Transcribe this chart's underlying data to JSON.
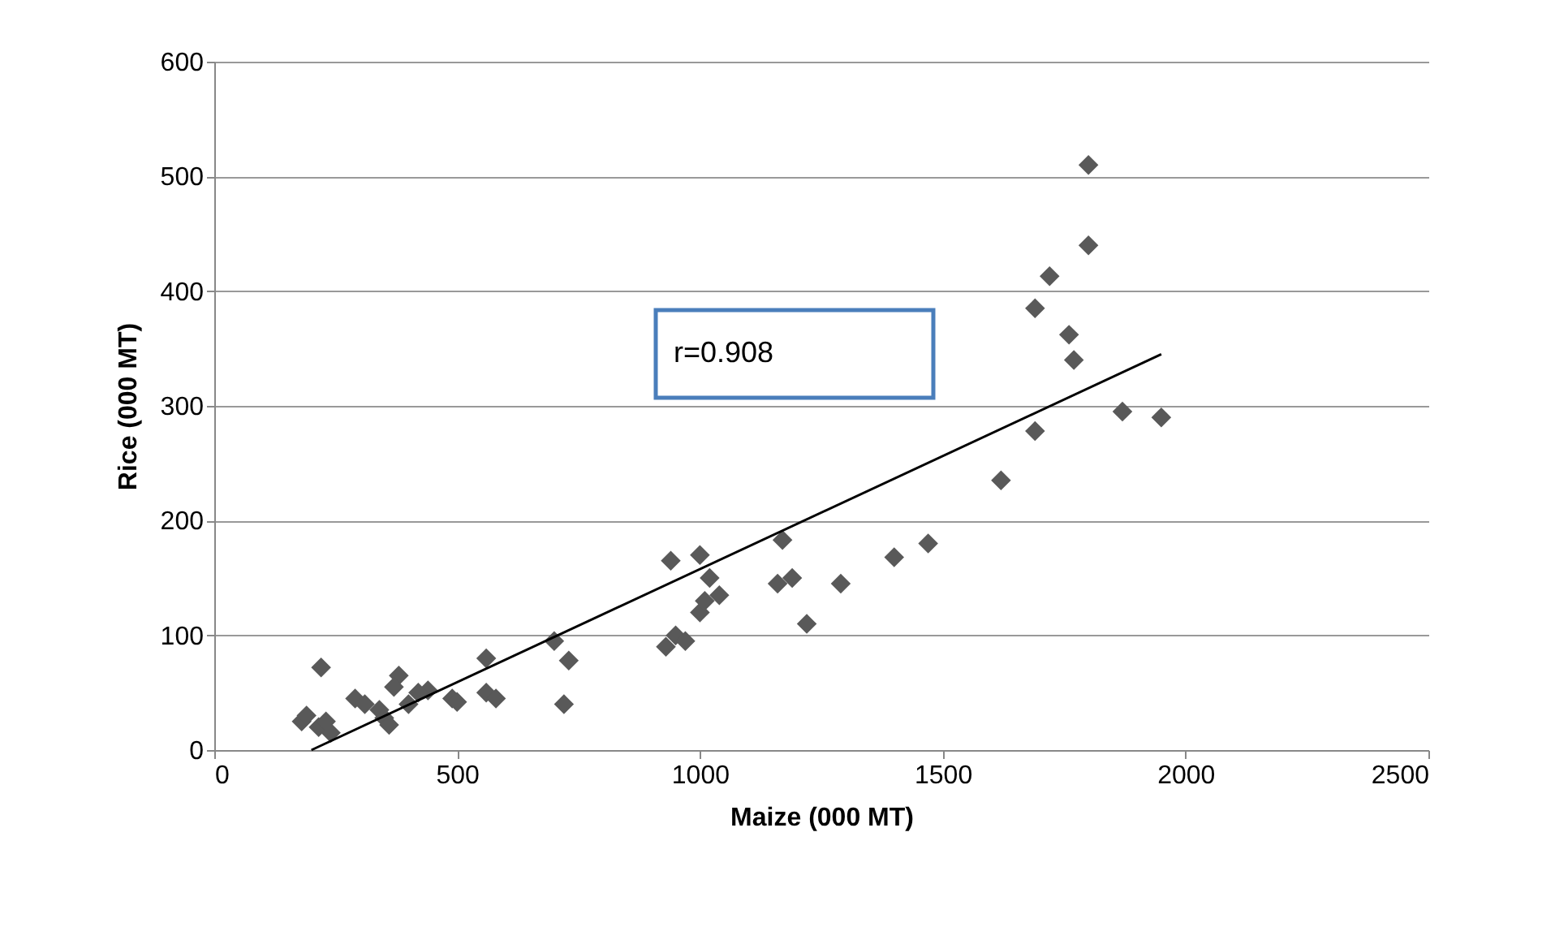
{
  "chart_data": {
    "type": "scatter",
    "xlabel": "Maize (000 MT)",
    "ylabel": "Rice (000 MT)",
    "xlim": [
      0,
      2500
    ],
    "xticks": [
      0,
      500,
      1000,
      1500,
      2000,
      2500
    ],
    "ylim": [
      0,
      600
    ],
    "yticks": [
      0,
      100,
      200,
      300,
      400,
      500,
      600
    ],
    "grid": "y",
    "annotations": [
      "r=0.908"
    ],
    "series": [
      {
        "type": "scatter",
        "color": "#595959",
        "marker": "diamond",
        "x": [
          180,
          190,
          220,
          215,
          240,
          230,
          290,
          310,
          340,
          350,
          360,
          380,
          370,
          400,
          440,
          420,
          490,
          500,
          560,
          560,
          580,
          700,
          720,
          730,
          930,
          940,
          950,
          970,
          1000,
          1000,
          1010,
          1020,
          1040,
          1160,
          1170,
          1190,
          1220,
          1290,
          1400,
          1470,
          1620,
          1690,
          1690,
          1720,
          1760,
          1770,
          1800,
          1800,
          1870,
          1950
        ],
        "values": [
          25,
          30,
          72,
          20,
          15,
          25,
          45,
          40,
          35,
          28,
          22,
          65,
          55,
          40,
          52,
          50,
          45,
          42,
          80,
          50,
          45,
          95,
          40,
          78,
          90,
          165,
          100,
          95,
          170,
          120,
          130,
          150,
          135,
          145,
          183,
          150,
          110,
          145,
          168,
          180,
          235,
          278,
          385,
          413,
          362,
          340,
          510,
          440,
          295,
          290
        ]
      },
      {
        "type": "line",
        "color": "#000000",
        "line_style": "solid",
        "marker": "none",
        "x": [
          200,
          1950
        ],
        "values": [
          0,
          345
        ]
      }
    ]
  }
}
